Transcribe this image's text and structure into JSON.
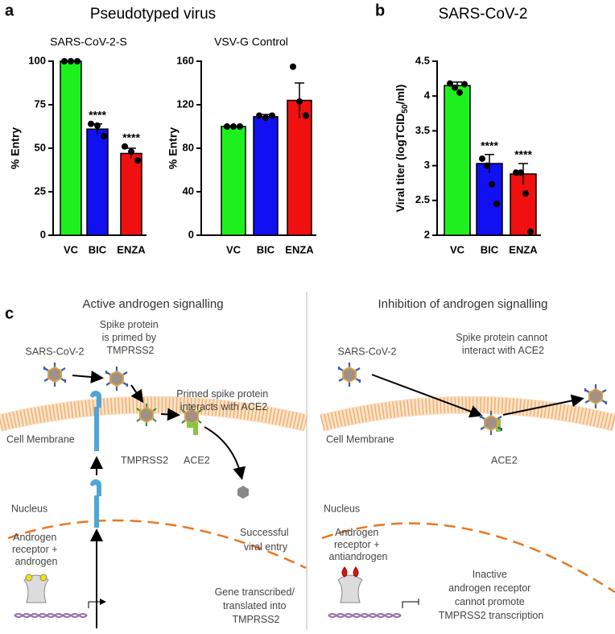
{
  "chart_data": [
    {
      "type": "bar",
      "panel_label": "a",
      "group_title": "Pseudotyped virus",
      "title": "SARS-CoV-2-S",
      "ylabel": "% Entry",
      "categories": [
        "VC",
        "BIC",
        "ENZA"
      ],
      "values": [
        100,
        61,
        47
      ],
      "errors": [
        0,
        3,
        3
      ],
      "points": [
        [
          100,
          100,
          100
        ],
        [
          64,
          63,
          57
        ],
        [
          51,
          48,
          43
        ]
      ],
      "annotations": [
        null,
        "****",
        "****"
      ],
      "colors": [
        "#1ef01e",
        "#1010f0",
        "#f01010"
      ],
      "ylim": [
        0,
        100
      ],
      "yticks": [
        0,
        25,
        50,
        75,
        100
      ]
    },
    {
      "type": "bar",
      "title": "VSV-G Control",
      "ylabel": "% Entry",
      "categories": [
        "VC",
        "BIC",
        "ENZA"
      ],
      "values": [
        100,
        109,
        124
      ],
      "errors": [
        0,
        2,
        16
      ],
      "points": [
        [
          100,
          100,
          100
        ],
        [
          110,
          108,
          110
        ],
        [
          155,
          123,
          110
        ]
      ],
      "colors": [
        "#1ef01e",
        "#1010f0",
        "#f01010"
      ],
      "ylim": [
        0,
        160
      ],
      "yticks": [
        0,
        40,
        80,
        120,
        160
      ]
    },
    {
      "type": "bar",
      "panel_label": "b",
      "title": "SARS-CoV-2",
      "ylabel_parts": [
        "Viral titer (logTCID",
        "50",
        "/ml)"
      ],
      "categories": [
        "VC",
        "BIC",
        "ENZA"
      ],
      "values": [
        4.15,
        3.03,
        2.88
      ],
      "errors": [
        0.05,
        0.13,
        0.15
      ],
      "points": [
        [
          4.18,
          4.12,
          4.05,
          4.17
        ],
        [
          3.1,
          3.0,
          2.73,
          2.45
        ],
        [
          2.9,
          2.9,
          2.6,
          2.05
        ]
      ],
      "annotations": [
        null,
        "****",
        "****"
      ],
      "colors": [
        "#1ef01e",
        "#1010f0",
        "#f01010"
      ],
      "ylim": [
        2,
        4.5
      ],
      "yticks": [
        2,
        2.5,
        3,
        3.5,
        4,
        4.5
      ]
    }
  ],
  "diagram": {
    "panel_label": "c",
    "left": {
      "title": "Active androgen signalling",
      "virus": "SARS-CoV-2",
      "primed": [
        "Spike protein",
        "is primed by",
        "TMPRSS2"
      ],
      "interacts": [
        "Primed spike protein",
        "interacts with ACE2"
      ],
      "membrane": "Cell Membrane",
      "tmprss2": "TMPRSS2",
      "ace2": "ACE2",
      "entry": [
        "Successful",
        "viral entry"
      ],
      "nucleus": "Nucleus",
      "receptor": [
        "Androgen",
        "receptor +",
        "androgen"
      ],
      "gene": [
        "Gene transcribed/",
        "translated into",
        "TMPRSS2"
      ]
    },
    "right": {
      "title": "Inhibition of androgen signalling",
      "virus": "SARS-CoV-2",
      "cannot": [
        "Spike protein cannot",
        "interact with ACE2"
      ],
      "membrane": "Cell Membrane",
      "ace2": "ACE2",
      "nucleus": "Nucleus",
      "receptor": [
        "Androgen",
        "receptor +",
        "antiandrogen"
      ],
      "inactive": [
        "Inactive",
        "androgen receptor",
        "cannot promote",
        "TMPRSS2 transcription"
      ]
    }
  }
}
